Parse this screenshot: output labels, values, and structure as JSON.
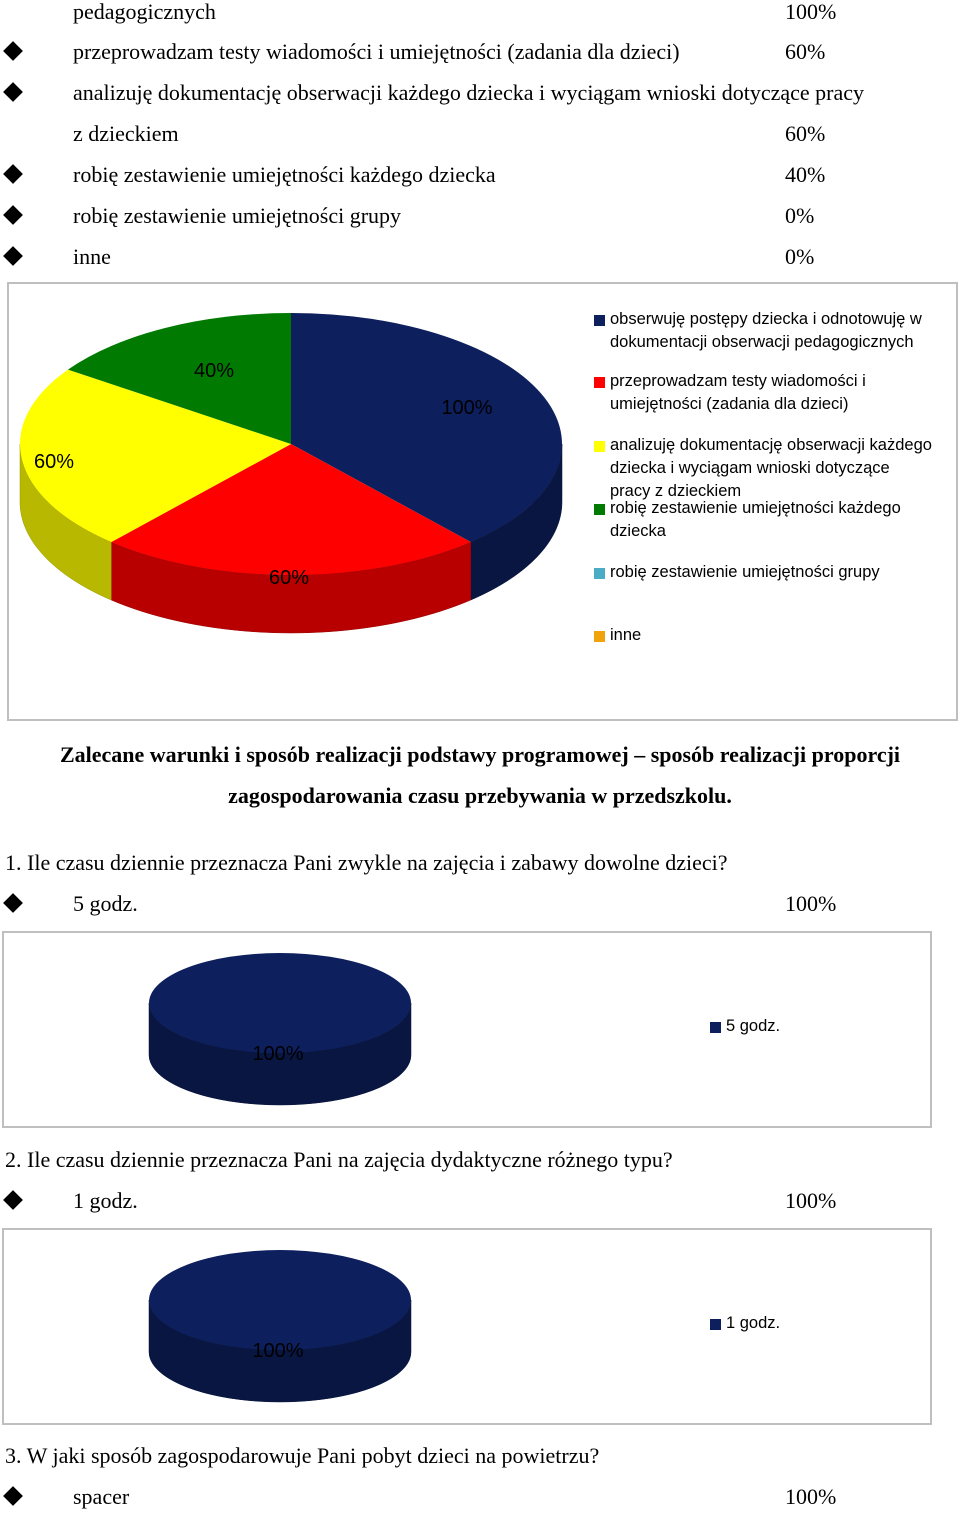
{
  "list_top": {
    "items": [
      {
        "text": "pedagogicznych",
        "pct": "100%",
        "bullet": false
      },
      {
        "text": "przeprowadzam testy wiadomości i umiejętności (zadania dla dzieci)",
        "pct": "60%",
        "bullet": true
      },
      {
        "text": "analizuję dokumentację obserwacji każdego dziecka i wyciągam  wnioski dotyczące pracy",
        "pct": "",
        "bullet": true
      },
      {
        "text": "z dzieckiem",
        "pct": "60%",
        "bullet": false
      },
      {
        "text": "robię zestawienie umiejętności każdego dziecka",
        "pct": "40%",
        "bullet": true
      },
      {
        "text": "robię zestawienie umiejętności grupy",
        "pct": "0%",
        "bullet": true
      },
      {
        "text": "inne",
        "pct": "0%",
        "bullet": true
      }
    ]
  },
  "chart_data": [
    {
      "type": "pie",
      "categories": [
        "obserwuję postępy dziecka i odnotowuję w dokumentacji obserwacji pedagogicznych",
        "przeprowadzam testy wiadomości i umiejętności (zadania dla dzieci)",
        "analizuję dokumentację obserwacji każdego dziecka i wyciągam  wnioski dotyczące pracy z dzieckiem",
        "robię zestawienie umiejętności każdego dziecka",
        "robię zestawienie umiejętności grupy",
        "inne"
      ],
      "values": [
        100,
        60,
        60,
        40,
        0,
        0
      ],
      "data_labels": [
        "100%",
        "60%",
        "60%",
        "40%",
        "",
        ""
      ],
      "colors": [
        "#0d1f5c",
        "#ff0000",
        "#ffff00",
        "#007a00",
        "#4bacc6",
        "#f0a30a"
      ],
      "legend_placement": "right",
      "three_d": true
    },
    {
      "type": "pie",
      "categories": [
        "5 godz."
      ],
      "values": [
        100
      ],
      "data_labels": [
        "100%"
      ],
      "colors": [
        "#0d1f5c"
      ],
      "legend_placement": "right",
      "three_d": true
    },
    {
      "type": "pie",
      "categories": [
        "1 godz."
      ],
      "values": [
        100
      ],
      "data_labels": [
        "100%"
      ],
      "colors": [
        "#0d1f5c"
      ],
      "legend_placement": "right",
      "three_d": true
    }
  ],
  "heading": {
    "line1": "Zalecane warunki i sposób realizacji podstawy programowej – sposób realizacji proporcji",
    "line2": "zagospodarowania czasu przebywania w przedszkolu."
  },
  "q1": {
    "question": "1. Ile czasu dziennie przeznacza Pani zwykle na zajęcia i zabawy dowolne dzieci?",
    "answer": "5 godz.",
    "pct": "100%"
  },
  "q2": {
    "question": "2.  Ile czasu dziennie przeznacza Pani na zajęcia dydaktyczne różnego typu?",
    "answer": "1 godz.",
    "pct": "100%"
  },
  "q3": {
    "question": "3. W jaki sposób zagospodarowuje Pani pobyt dzieci na powietrzu?",
    "answer": "spacer",
    "pct": "100%"
  }
}
